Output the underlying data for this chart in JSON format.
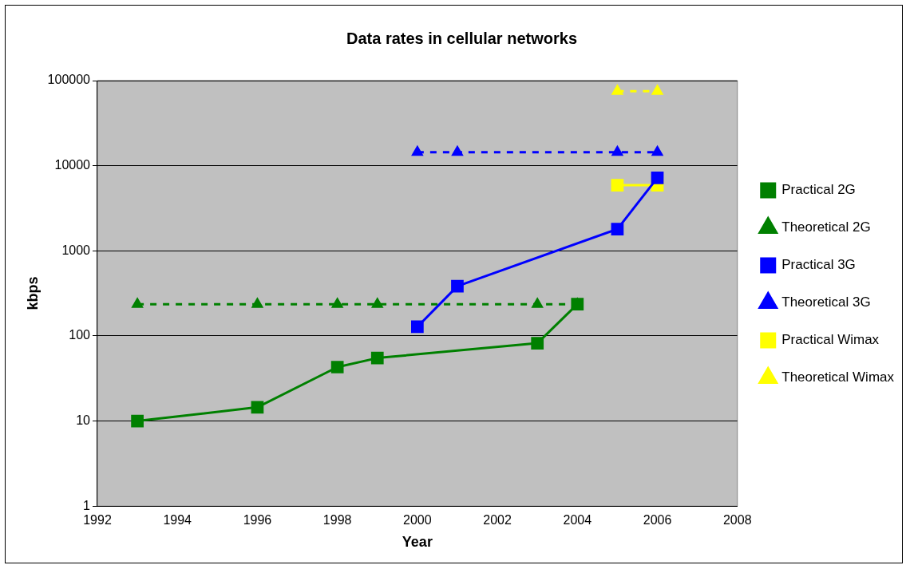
{
  "chart_data": {
    "type": "line",
    "title": "Data rates in cellular networks",
    "xlabel": "Year",
    "ylabel": "kbps",
    "xlim": [
      1992,
      2008
    ],
    "xticks": [
      1992,
      1994,
      1996,
      1998,
      2000,
      2002,
      2004,
      2006,
      2008
    ],
    "ylim": [
      1,
      100000
    ],
    "yticks": [
      1,
      10,
      100,
      1000,
      10000,
      100000
    ],
    "log": "y",
    "grid": "y",
    "legend": "right",
    "series": [
      {
        "name": "Practical 2G",
        "color": "#008000",
        "marker": "square",
        "line_style": "solid",
        "x": [
          1993,
          1996,
          1998,
          1999,
          2003,
          2004
        ],
        "values": [
          10,
          14.5,
          43,
          55,
          82,
          236
        ]
      },
      {
        "name": "Theoretical 2G",
        "color": "#008000",
        "marker": "triangle",
        "line_style": "dashed",
        "x": [
          1993,
          1996,
          1998,
          1999,
          2003,
          2004
        ],
        "values": [
          236,
          236,
          236,
          236,
          236,
          236
        ]
      },
      {
        "name": "Practical 3G",
        "color": "#0000ff",
        "marker": "square",
        "line_style": "solid",
        "x": [
          2000,
          2001,
          2005,
          2006
        ],
        "values": [
          128,
          384,
          1800,
          7200
        ]
      },
      {
        "name": "Theoretical 3G",
        "color": "#0000ff",
        "marker": "triangle",
        "line_style": "dashed",
        "x": [
          2000,
          2001,
          2005,
          2006
        ],
        "values": [
          14400,
          14400,
          14400,
          14400
        ]
      },
      {
        "name": "Practical Wimax",
        "color": "#ffff00",
        "marker": "square",
        "line_style": "solid",
        "x": [
          2005,
          2006
        ],
        "values": [
          5900,
          5900
        ]
      },
      {
        "name": "Theoretical Wimax",
        "color": "#ffff00",
        "marker": "triangle",
        "line_style": "dashed",
        "x": [
          2005,
          2006
        ],
        "values": [
          75000,
          75000
        ]
      }
    ]
  }
}
